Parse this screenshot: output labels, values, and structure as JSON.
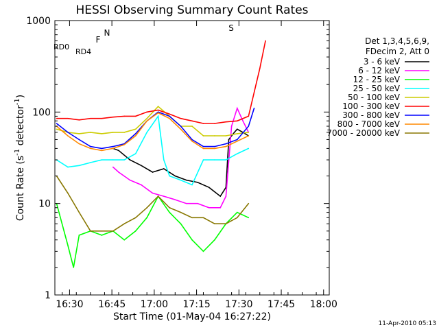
{
  "chart_data": {
    "type": "line",
    "title": "HESSI Observing Summary Count Rates",
    "xlabel": "Start Time (01-May-04 16:27:22)",
    "ylabel_parts": [
      "Count Rate (s",
      "-1",
      " detector",
      "-1",
      ")"
    ],
    "yscale": "log",
    "ylim": [
      1,
      1000
    ],
    "xlim_minutes": [
      -2.6,
      94.6
    ],
    "x_tick_labels": [
      "16:30",
      "16:45",
      "17:00",
      "17:15",
      "17:30",
      "17:45",
      "18:00"
    ],
    "x_tick_minutes": [
      2.6,
      17.6,
      32.6,
      47.6,
      62.6,
      77.6,
      92.6
    ],
    "y_tick_labels": [
      "1",
      "10",
      "100",
      "1000"
    ],
    "y_tick_values": [
      1,
      10,
      100,
      1000
    ],
    "legend_header": [
      "Det 1,3,4,5,6,9,",
      "FDecim 2, Att 0"
    ],
    "legend_position": "right",
    "series": [
      {
        "name": "3 - 6 keV",
        "color": "#000000",
        "x": [
          -2,
          2,
          6,
          10,
          14,
          16,
          18,
          20,
          24,
          28,
          32,
          36,
          40,
          44,
          48,
          52,
          56,
          58,
          59,
          60,
          61,
          62,
          64,
          66
        ],
        "y": [
          null,
          null,
          null,
          null,
          null,
          null,
          40,
          38,
          30,
          26,
          22,
          24,
          20,
          18,
          17,
          15,
          12,
          15,
          50,
          55,
          60,
          65,
          60,
          55
        ]
      },
      {
        "name": "6 - 12 keV",
        "color": "#ff00ff",
        "x": [
          18,
          20,
          24,
          28,
          32,
          36,
          40,
          44,
          48,
          52,
          56,
          58,
          60,
          62,
          64,
          66
        ],
        "y": [
          25,
          22,
          18,
          16,
          13,
          12,
          11,
          10,
          10,
          9,
          9,
          12,
          70,
          110,
          80,
          60
        ]
      },
      {
        "name": "12 - 25 keV",
        "color": "#00ff00",
        "x": [
          -2,
          2,
          4,
          6,
          10,
          14,
          18,
          22,
          26,
          30,
          34,
          38,
          42,
          46,
          50,
          54,
          58,
          62,
          66
        ],
        "y": [
          10,
          3.5,
          2,
          4.5,
          5,
          4.5,
          5,
          4,
          5,
          7,
          12,
          8,
          6,
          4,
          3,
          4,
          6,
          8,
          7
        ]
      },
      {
        "name": "25 - 50 keV",
        "color": "#00ffff",
        "x": [
          -2,
          2,
          6,
          10,
          14,
          18,
          22,
          26,
          30,
          34,
          36,
          38,
          42,
          46,
          50,
          54,
          58,
          62,
          66
        ],
        "y": [
          30,
          25,
          26,
          28,
          30,
          30,
          30,
          35,
          60,
          90,
          30,
          20,
          18,
          16,
          30,
          30,
          30,
          35,
          40
        ]
      },
      {
        "name": "50 - 100 keV",
        "color": "#cccc00",
        "x": [
          -2,
          2,
          6,
          10,
          14,
          18,
          22,
          26,
          30,
          34,
          38,
          42,
          46,
          50,
          54,
          58,
          62,
          66
        ],
        "y": [
          65,
          60,
          58,
          60,
          58,
          60,
          60,
          65,
          85,
          115,
          90,
          70,
          70,
          55,
          55,
          55,
          58,
          60
        ]
      },
      {
        "name": "100 - 300 keV",
        "color": "#ff0000",
        "x": [
          -2,
          2,
          6,
          10,
          14,
          18,
          22,
          26,
          30,
          34,
          38,
          42,
          46,
          50,
          54,
          58,
          62,
          66,
          70,
          72
        ],
        "y": [
          85,
          85,
          82,
          85,
          85,
          88,
          90,
          90,
          100,
          105,
          95,
          85,
          80,
          75,
          75,
          78,
          80,
          90,
          300,
          600
        ]
      },
      {
        "name": "300 - 800 keV",
        "color": "#0000ff",
        "x": [
          -2,
          2,
          6,
          10,
          14,
          18,
          22,
          26,
          30,
          34,
          38,
          42,
          46,
          50,
          54,
          58,
          62,
          66,
          68
        ],
        "y": [
          75,
          60,
          50,
          42,
          40,
          42,
          45,
          58,
          80,
          100,
          90,
          70,
          50,
          42,
          42,
          45,
          50,
          70,
          110
        ]
      },
      {
        "name": "800 - 7000 keV",
        "color": "#ff8800",
        "x": [
          -2,
          2,
          6,
          10,
          14,
          18,
          22,
          26,
          30,
          34,
          38,
          42,
          46,
          50,
          54,
          58,
          62,
          66
        ],
        "y": [
          70,
          55,
          45,
          40,
          38,
          40,
          44,
          55,
          80,
          98,
          85,
          65,
          48,
          40,
          40,
          42,
          48,
          55
        ]
      },
      {
        "name": "7000 - 20000 keV",
        "color": "#887700",
        "x": [
          -2,
          2,
          6,
          10,
          14,
          18,
          22,
          26,
          30,
          34,
          38,
          42,
          46,
          50,
          54,
          58,
          62,
          66
        ],
        "y": [
          20,
          13,
          8,
          5,
          5,
          5,
          6,
          7,
          9,
          12,
          9,
          8,
          7,
          7,
          6,
          6,
          7,
          10
        ]
      }
    ],
    "flag_labels": [
      "N",
      "F",
      "S",
      "RD0",
      "RD4"
    ],
    "timestamp": "11-Apr-2010 05:13"
  }
}
